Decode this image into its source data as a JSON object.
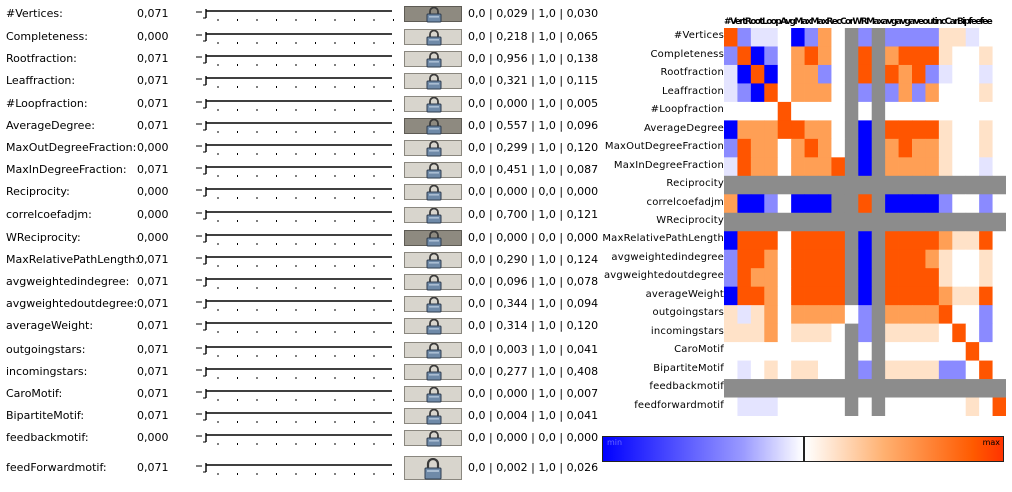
{
  "features": [
    {
      "name": "#Vertices:",
      "value": "0,071",
      "range": "0,0 | 0,029 | 1,0 | 0,030",
      "locked": true
    },
    {
      "name": "Completeness:",
      "value": "0,000",
      "range": "0,0 | 0,218 | 1,0 | 0,065",
      "locked": false
    },
    {
      "name": "Rootfraction:",
      "value": "0,071",
      "range": "0,0 | 0,956 | 1,0 | 0,138",
      "locked": false
    },
    {
      "name": "Leaffraction:",
      "value": "0,071",
      "range": "0,0 | 0,321 | 1,0 | 0,115",
      "locked": false
    },
    {
      "name": "#Loopfraction:",
      "value": "0,071",
      "range": "0,0 | 0,000 | 1,0 | 0,005",
      "locked": false
    },
    {
      "name": "AverageDegree:",
      "value": "0,071",
      "range": "0,0 | 0,557 | 1,0 | 0,096",
      "locked": true
    },
    {
      "name": "MaxOutDegreeFraction:",
      "value": "0,000",
      "range": "0,0 | 0,299 | 1,0 | 0,120",
      "locked": false
    },
    {
      "name": "MaxInDegreeFraction:",
      "value": "0,071",
      "range": "0,0 | 0,451 | 1,0 | 0,087",
      "locked": false
    },
    {
      "name": "Reciprocity:",
      "value": "0,000",
      "range": "0,0 | 0,000 | 0,0 | 0,000",
      "locked": false
    },
    {
      "name": "correlcoefadjm:",
      "value": "0,000",
      "range": "0,0 | 0,700 | 1,0 | 0,121",
      "locked": false
    },
    {
      "name": "WReciprocity:",
      "value": "0,000",
      "range": "0,0 | 0,000 | 0,0 | 0,000",
      "locked": true
    },
    {
      "name": "MaxRelativePathLength:",
      "value": "0,071",
      "range": "0,0 | 0,290 | 1,0 | 0,124",
      "locked": false
    },
    {
      "name": "avgweightedindegree:",
      "value": "0,071",
      "range": "0,0 | 0,096 | 1,0 | 0,078",
      "locked": false
    },
    {
      "name": "avgweightedoutdegree:",
      "value": "0,071",
      "range": "0,0 | 0,344 | 1,0 | 0,094",
      "locked": false
    },
    {
      "name": "averageWeight:",
      "value": "0,071",
      "range": "0,0 | 0,314 | 1,0 | 0,120",
      "locked": false
    },
    {
      "name": "outgoingstars:",
      "value": "0,071",
      "range": "0,0 | 0,003 | 1,0 | 0,041",
      "locked": false
    },
    {
      "name": "incomingstars:",
      "value": "0,071",
      "range": "0,0 | 0,277 | 1,0 | 0,408",
      "locked": false
    },
    {
      "name": "CaroMotif:",
      "value": "0,071",
      "range": "0,0 | 0,000 | 1,0 | 0,007",
      "locked": false
    },
    {
      "name": "BipartiteMotif:",
      "value": "0,071",
      "range": "0,0 | 0,004 | 1,0 | 0,041",
      "locked": false
    },
    {
      "name": "feedbackmotif:",
      "value": "0,000",
      "range": "0,0 | 0,000 | 0,0 | 0,000",
      "locked": false
    },
    {
      "name": "feedForwardmotif:",
      "value": "0,071",
      "range": "0,0 | 0,002 | 1,0 | 0,026",
      "locked": false
    }
  ],
  "matrix": {
    "row_labels": [
      "#Vertices",
      "Completeness",
      "Rootfraction",
      "Leaffraction",
      "#Loopfraction",
      "AverageDegree",
      "MaxOutDegreeFraction",
      "MaxInDegreeFraction",
      "Reciprocity",
      "correlcoefadjm",
      "WReciprocity",
      "MaxRelativePathLength",
      "avgweightedindegree",
      "avgweightedoutdegree",
      "averageWeight",
      "outgoingstars",
      "incomingstars",
      "CaroMotif",
      "BipartiteMotif",
      "feedbackmotif",
      "feedforwardmotif"
    ],
    "column_header_text": "#VertRootLoopAvgMaxMaxRecCorWRMaxavgavgaveoutincCarBipfeefee",
    "colors": {
      "strong_neg": "#0000ff",
      "neg": "#8a8aff",
      "weak_neg": "#e4e4ff",
      "zero": "#ffffff",
      "weak_pos": "#ffe2c8",
      "pos": "#ff9f55",
      "strong_pos": "#ff5500",
      "na": "#8c8c8c"
    }
  },
  "legend": {
    "min_label": "min",
    "max_label": "max"
  }
}
